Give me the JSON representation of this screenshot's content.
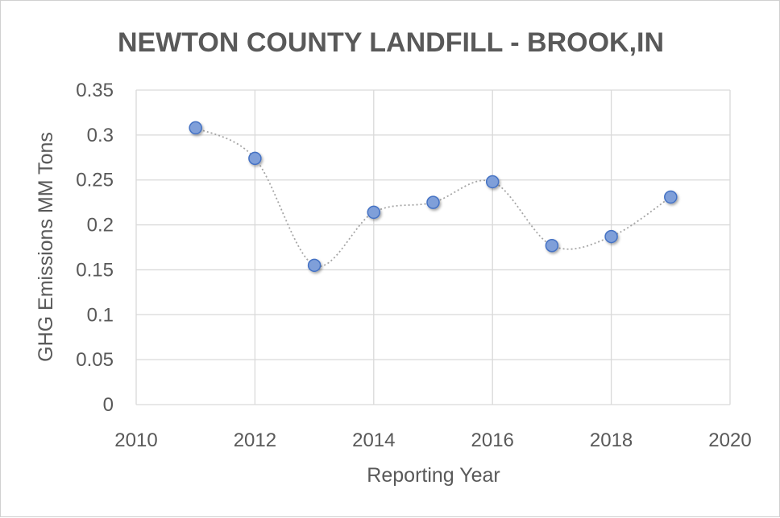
{
  "chart_data": {
    "type": "scatter",
    "title": "NEWTON COUNTY LANDFILL - BROOK,IN",
    "xlabel": "Reporting Year",
    "ylabel": "GHG Emissions MM Tons",
    "xlim": [
      2010,
      2020
    ],
    "ylim": [
      0,
      0.35
    ],
    "x_ticks": [
      "2010",
      "2012",
      "2014",
      "2016",
      "2018",
      "2020"
    ],
    "y_ticks": [
      "0",
      "0.05",
      "0.1",
      "0.15",
      "0.2",
      "0.25",
      "0.3",
      "0.35"
    ],
    "grid": true,
    "smoothed_line": true,
    "series": [
      {
        "name": "GHG Emissions",
        "x": [
          2011,
          2012,
          2013,
          2014,
          2015,
          2016,
          2017,
          2018,
          2019
        ],
        "y": [
          0.308,
          0.274,
          0.155,
          0.214,
          0.225,
          0.248,
          0.177,
          0.187,
          0.231
        ]
      }
    ],
    "colors": {
      "marker_fill": "#7f9fd9",
      "marker_stroke": "#4472c4",
      "line": "#a6a6a6",
      "grid": "#d9d9d9",
      "text": "#595959"
    }
  }
}
